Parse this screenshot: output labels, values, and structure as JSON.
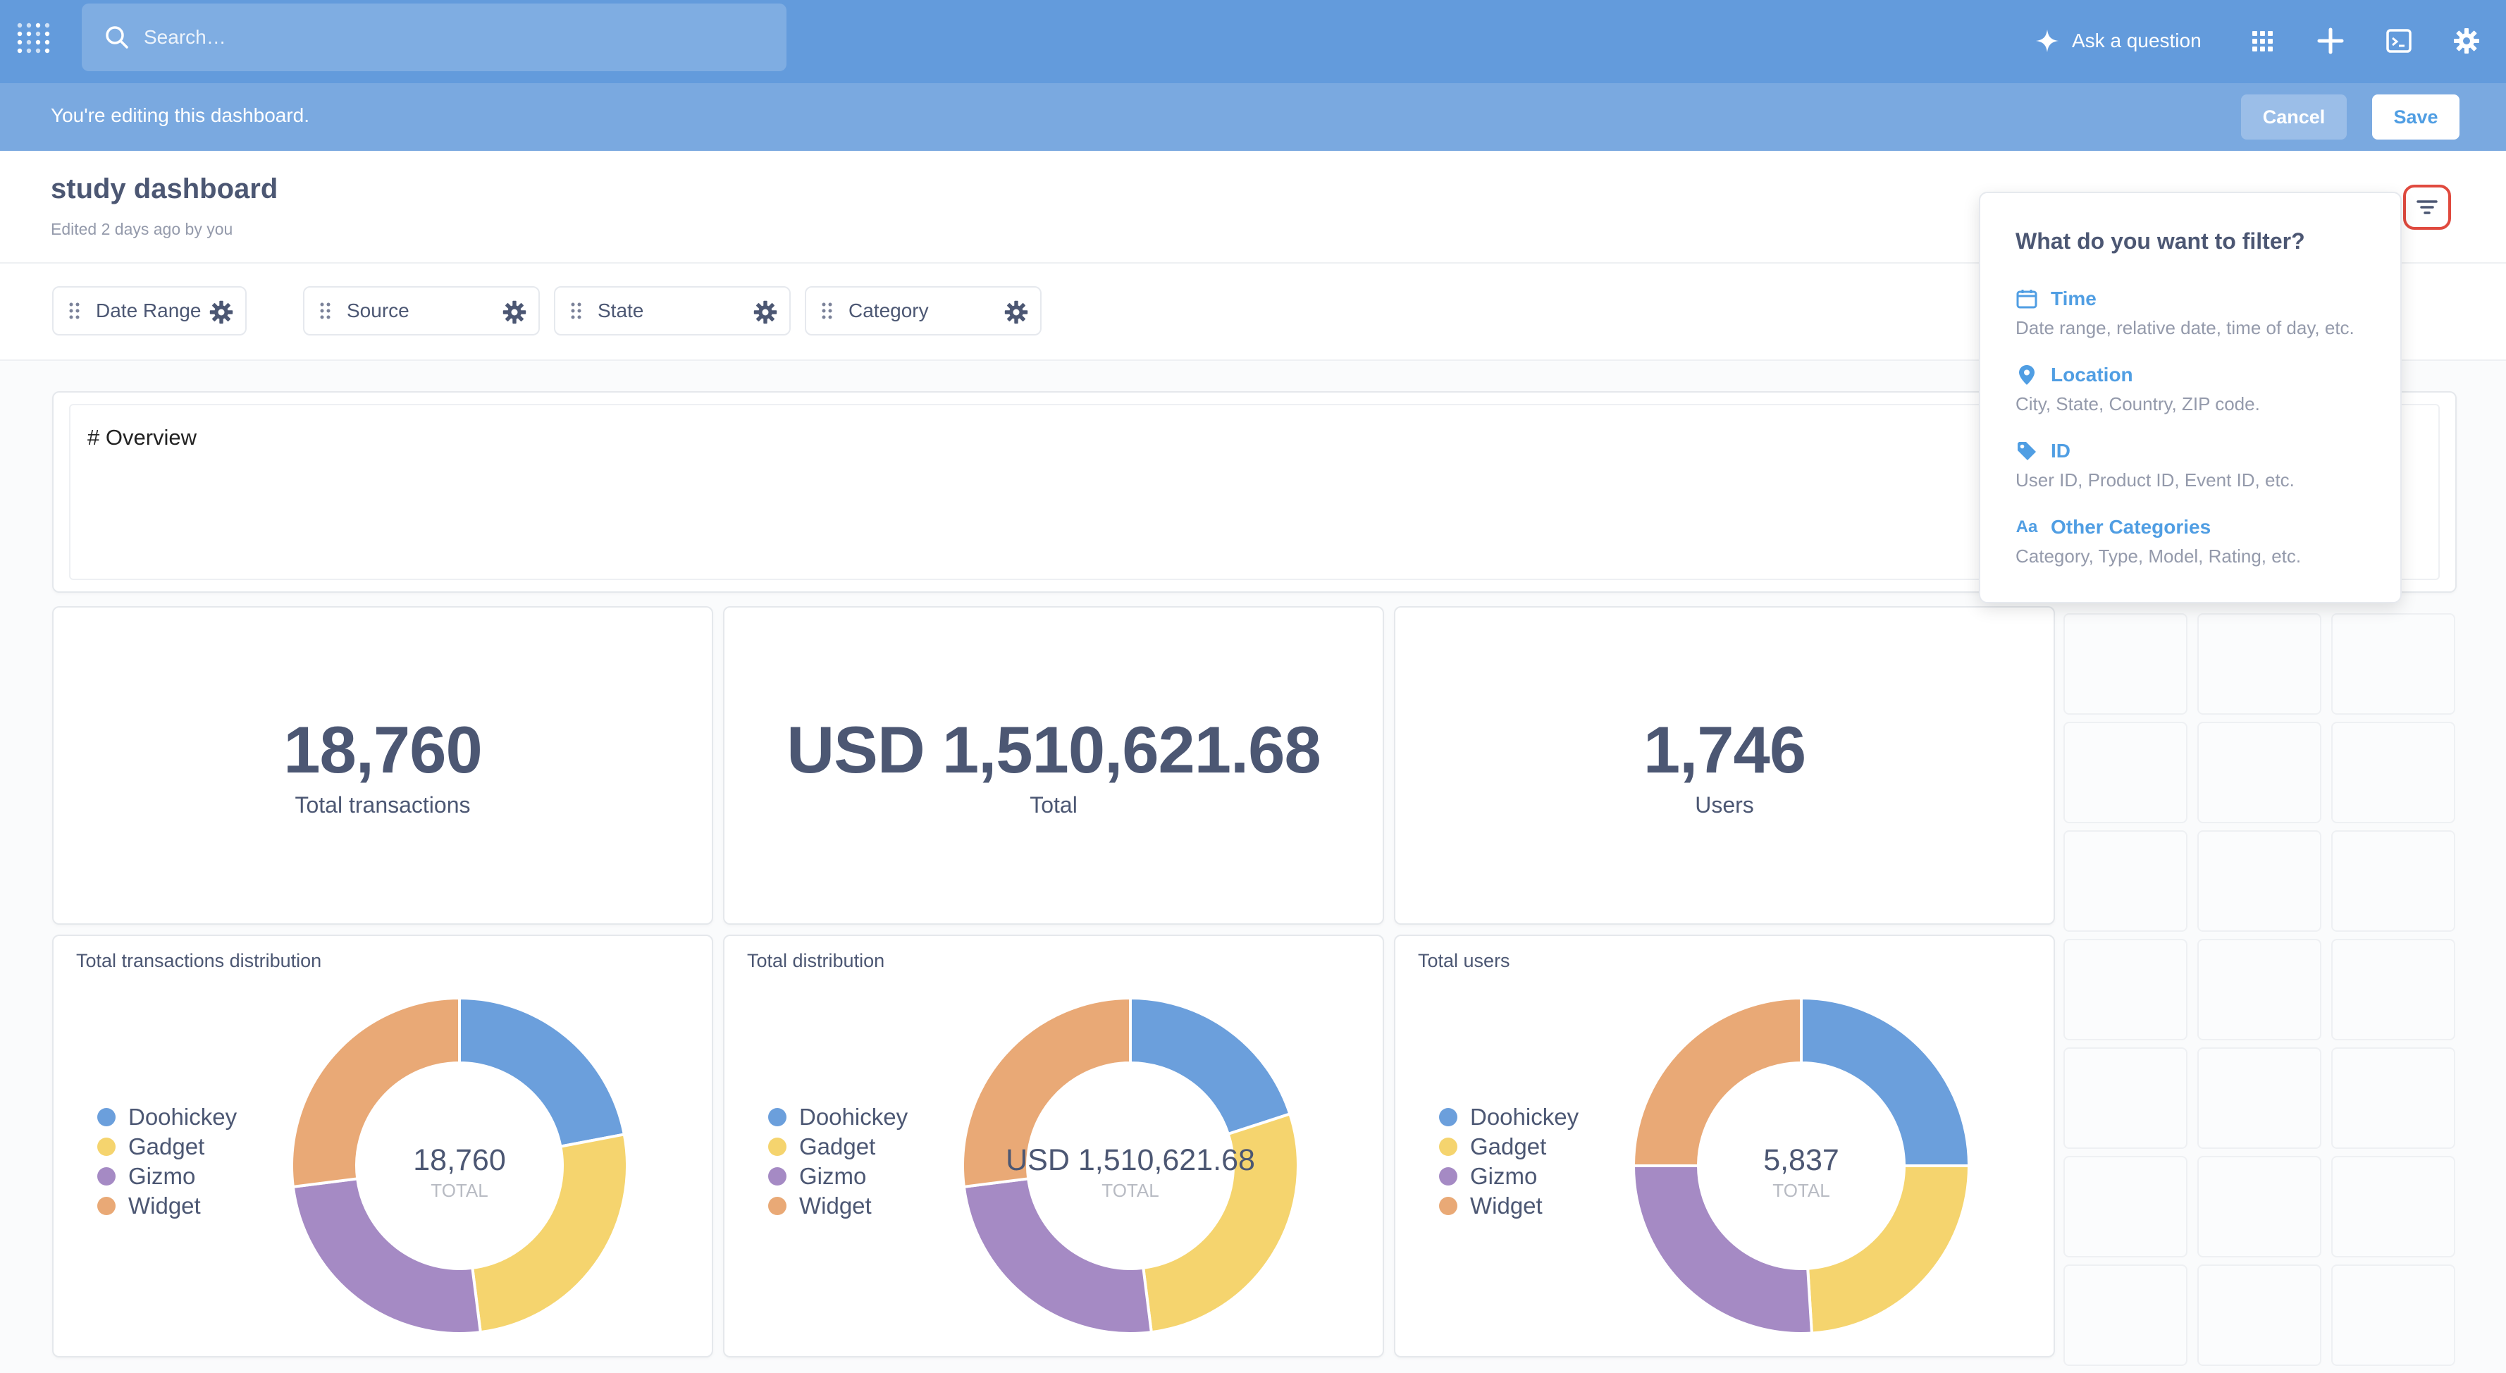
{
  "nav": {
    "search_placeholder": "Search…",
    "ask_label": "Ask a question"
  },
  "editbar": {
    "message": "You're editing this dashboard.",
    "cancel_label": "Cancel",
    "save_label": "Save"
  },
  "dashboard": {
    "title": "study dashboard",
    "subtitle": "Edited 2 days ago by you"
  },
  "filters": [
    {
      "label": "Date Range"
    },
    {
      "label": "Source"
    },
    {
      "label": "State"
    },
    {
      "label": "Category"
    }
  ],
  "text_card": {
    "content": "# Overview"
  },
  "scalars": [
    {
      "value": "18,760",
      "label": "Total transactions"
    },
    {
      "value": "USD 1,510,621.68",
      "label": "Total"
    },
    {
      "value": "1,746",
      "label": "Users"
    }
  ],
  "popover": {
    "title": "What do you want to filter?",
    "options": [
      {
        "name": "Time",
        "desc": "Date range, relative date, time of day, etc.",
        "icon": "calendar-icon"
      },
      {
        "name": "Location",
        "desc": "City, State, Country, ZIP code.",
        "icon": "location-pin-icon"
      },
      {
        "name": "ID",
        "desc": "User ID, Product ID, Event ID, etc.",
        "icon": "tag-icon"
      },
      {
        "name": "Other Categories",
        "desc": "Category, Type, Model, Rating, etc.",
        "icon": "text-aa-icon",
        "icon_text": "Aa"
      }
    ]
  },
  "colors": {
    "nav": "#639bdc",
    "editbar": "#7aa9e0",
    "brand": "#509ee3",
    "doohickey": "#6b9fdc",
    "gadget": "#f5d46e",
    "gizmo": "#a58ac4",
    "widget": "#e9a976"
  },
  "chart_data": [
    {
      "type": "pie",
      "title": "Total transactions distribution",
      "categories": [
        "Doohickey",
        "Gadget",
        "Gizmo",
        "Widget"
      ],
      "values": [
        0.22,
        0.26,
        0.25,
        0.27
      ],
      "center_value": "18,760",
      "center_label": "TOTAL"
    },
    {
      "type": "pie",
      "title": "Total distribution",
      "categories": [
        "Doohickey",
        "Gadget",
        "Gizmo",
        "Widget"
      ],
      "values": [
        0.2,
        0.28,
        0.25,
        0.27
      ],
      "center_value": "USD 1,510,621.68",
      "center_label": "TOTAL"
    },
    {
      "type": "pie",
      "title": "Total users",
      "categories": [
        "Doohickey",
        "Gadget",
        "Gizmo",
        "Widget"
      ],
      "values": [
        0.25,
        0.24,
        0.26,
        0.25
      ],
      "center_value": "5,837",
      "center_label": "TOTAL"
    }
  ]
}
